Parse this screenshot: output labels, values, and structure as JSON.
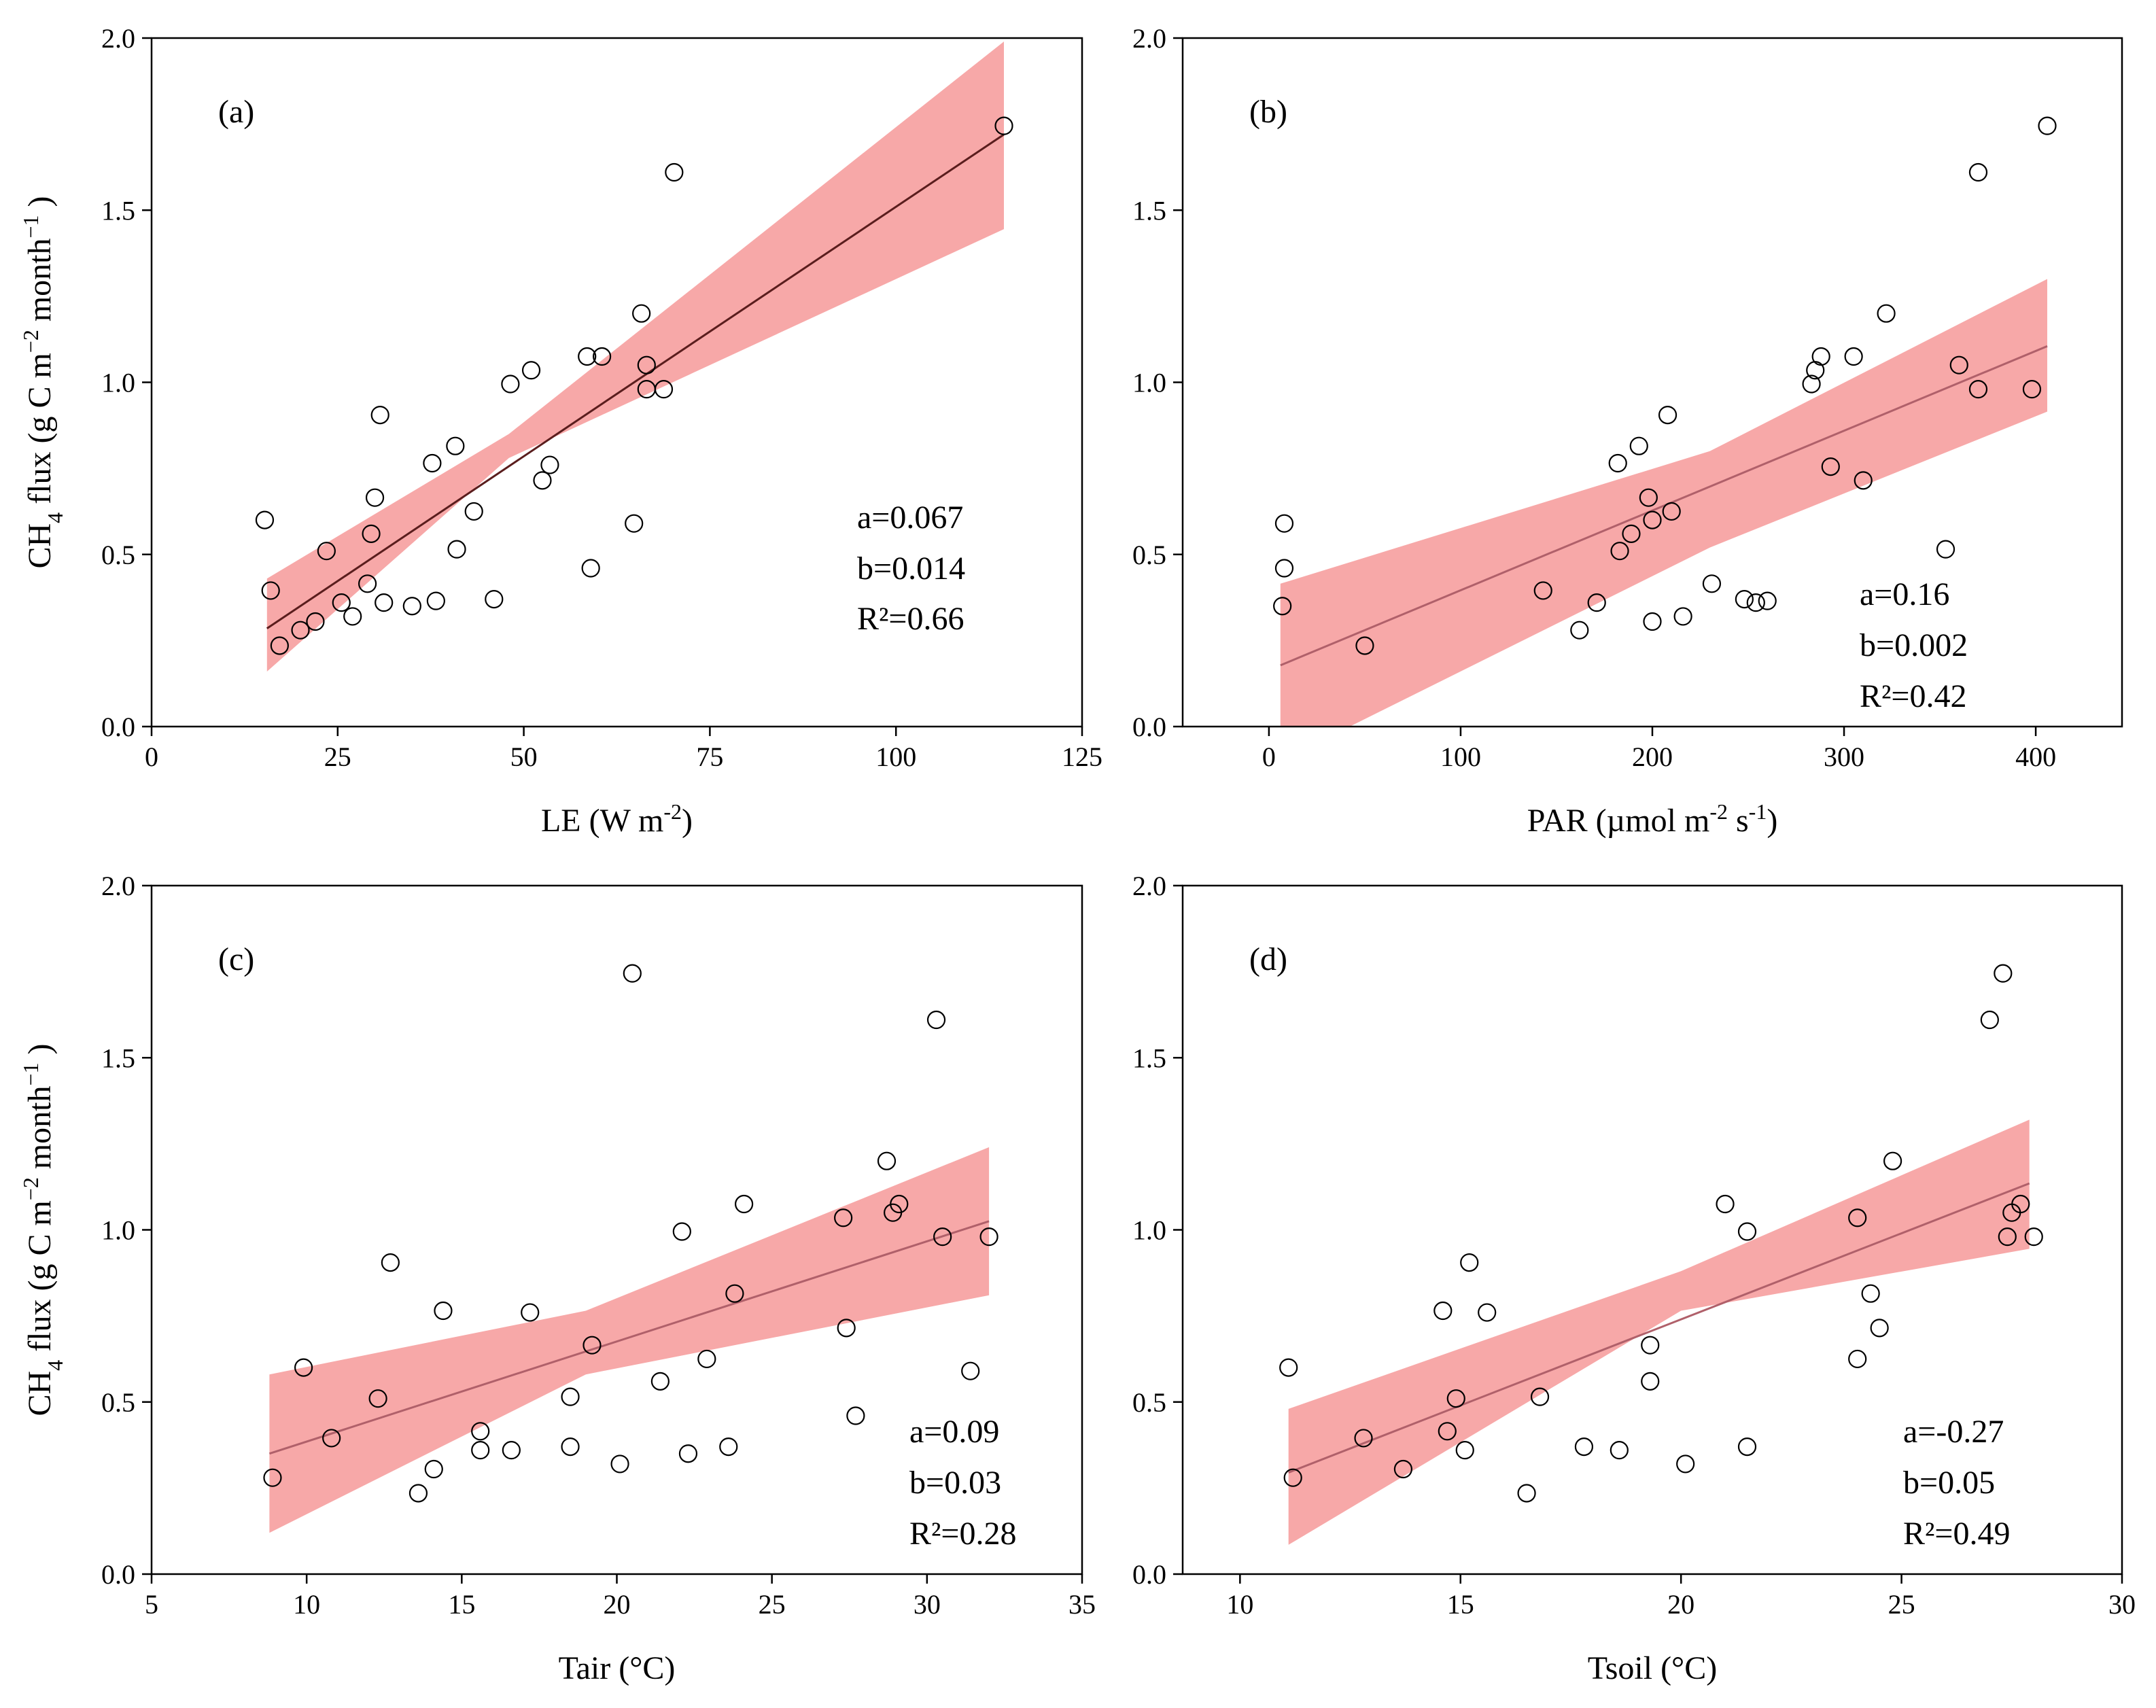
{
  "figure": {
    "ylabel_main": "CH",
    "ylabel_sub": "4",
    "ylabel_rest": " flux (g C m",
    "ylabel_sup1": "−2",
    "ylabel_rest2": " month",
    "ylabel_sup2": "−1",
    "ylabel_close": " )"
  },
  "colors": {
    "band": "#f7a8a8",
    "line_a": "#5a1d1d",
    "line_other": "#b0606a",
    "marker_edge": "#000000",
    "marker_fill": "#ffffff"
  },
  "chart_data": [
    {
      "type": "scatter",
      "panel": "(a)",
      "xlabel": "LE (W m",
      "xlabel_sup": "-2",
      "xlabel_close": ")",
      "xlim": [
        0,
        125
      ],
      "ylim": [
        0,
        2.0
      ],
      "xticks": [
        "0",
        "25",
        "50",
        "75",
        "100",
        "125"
      ],
      "yticks": [
        "0.0",
        "0.5",
        "1.0",
        "1.5",
        "2.0"
      ],
      "stats": [
        "a=0.067",
        "b=0.014",
        "R²=0.66"
      ],
      "fit": {
        "x0": 15.5,
        "x1": 114.5,
        "y0": 0.285,
        "y1": 1.72
      },
      "band": {
        "x": [
          15.5,
          48,
          114.5
        ],
        "lower": [
          0.16,
          0.78,
          1.445
        ],
        "upper": [
          0.43,
          0.85,
          1.99
        ]
      },
      "points": [
        [
          15.2,
          0.6
        ],
        [
          16,
          0.395
        ],
        [
          17.2,
          0.235
        ],
        [
          20,
          0.28
        ],
        [
          22,
          0.305
        ],
        [
          23.5,
          0.51
        ],
        [
          25.5,
          0.36
        ],
        [
          27,
          0.32
        ],
        [
          29,
          0.415
        ],
        [
          29.5,
          0.56
        ],
        [
          30,
          0.665
        ],
        [
          30.7,
          0.905
        ],
        [
          31.2,
          0.36
        ],
        [
          35,
          0.35
        ],
        [
          37.7,
          0.765
        ],
        [
          38.2,
          0.365
        ],
        [
          40.8,
          0.815
        ],
        [
          41,
          0.515
        ],
        [
          43.3,
          0.625
        ],
        [
          46,
          0.37
        ],
        [
          48.2,
          0.995
        ],
        [
          51,
          1.035
        ],
        [
          52.5,
          0.715
        ],
        [
          53.5,
          0.76
        ],
        [
          58.5,
          1.075
        ],
        [
          59,
          0.46
        ],
        [
          60.5,
          1.075
        ],
        [
          64.8,
          0.59
        ],
        [
          65.8,
          1.2
        ],
        [
          66.5,
          1.05
        ],
        [
          66.5,
          0.98
        ],
        [
          68.8,
          0.98
        ],
        [
          70.2,
          1.61
        ],
        [
          114.5,
          1.745
        ]
      ]
    },
    {
      "type": "scatter",
      "panel": "(b)",
      "xlabel": "PAR (µmol m",
      "xlabel_sup": "-2",
      "xlabel_mid": " s",
      "xlabel_sup2": "-1",
      "xlabel_close": ")",
      "xlim": [
        -45,
        445
      ],
      "ylim": [
        0,
        2.0
      ],
      "xticks": [
        "0",
        "100",
        "200",
        "300",
        "400"
      ],
      "xtick_values": [
        0,
        100,
        200,
        300,
        400
      ],
      "yticks": [
        "0.0",
        "0.5",
        "1.0",
        "1.5",
        "2.0"
      ],
      "stats": [
        "a=0.16",
        "b=0.002",
        "R²=0.42"
      ],
      "fit": {
        "x0": 6,
        "x1": 406,
        "y0": 0.178,
        "y1": 1.105
      },
      "band": {
        "x": [
          6,
          230,
          406
        ],
        "lower": [
          -0.1,
          0.52,
          0.915
        ],
        "upper": [
          0.415,
          0.8,
          1.3
        ]
      },
      "points": [
        [
          7,
          0.35
        ],
        [
          8,
          0.46
        ],
        [
          8,
          0.59
        ],
        [
          50,
          0.235
        ],
        [
          143,
          0.395
        ],
        [
          162,
          0.28
        ],
        [
          171,
          0.36
        ],
        [
          182,
          0.765
        ],
        [
          183,
          0.51
        ],
        [
          189,
          0.56
        ],
        [
          193,
          0.815
        ],
        [
          198,
          0.665
        ],
        [
          200,
          0.305
        ],
        [
          200,
          0.6
        ],
        [
          208,
          0.905
        ],
        [
          210,
          0.625
        ],
        [
          216,
          0.32
        ],
        [
          231,
          0.415
        ],
        [
          248,
          0.37
        ],
        [
          254,
          0.36
        ],
        [
          260,
          0.365
        ],
        [
          283,
          0.995
        ],
        [
          285,
          1.035
        ],
        [
          288,
          1.075
        ],
        [
          293,
          0.755
        ],
        [
          305,
          1.075
        ],
        [
          310,
          0.715
        ],
        [
          322,
          1.2
        ],
        [
          353,
          0.515
        ],
        [
          360,
          1.05
        ],
        [
          370,
          0.98
        ],
        [
          370,
          1.61
        ],
        [
          398,
          0.98
        ],
        [
          406,
          1.745
        ]
      ]
    },
    {
      "type": "scatter",
      "panel": "(c)",
      "xlabel": "Tair (°C)",
      "xlim": [
        5,
        35
      ],
      "ylim": [
        0,
        2.0
      ],
      "xticks": [
        "5",
        "10",
        "15",
        "20",
        "25",
        "30",
        "35"
      ],
      "yticks": [
        "0.0",
        "0.5",
        "1.0",
        "1.5",
        "2.0"
      ],
      "stats": [
        "a=0.09",
        "b=0.03",
        "R²=0.28"
      ],
      "fit": {
        "x0": 8.8,
        "x1": 32,
        "y0": 0.35,
        "y1": 1.025
      },
      "band": {
        "x": [
          8.8,
          19,
          32
        ],
        "lower": [
          0.12,
          0.58,
          0.81
        ],
        "upper": [
          0.58,
          0.765,
          1.24
        ]
      },
      "points": [
        [
          8.9,
          0.28
        ],
        [
          9.9,
          0.6
        ],
        [
          10.8,
          0.395
        ],
        [
          12.3,
          0.51
        ],
        [
          12.7,
          0.905
        ],
        [
          13.6,
          0.235
        ],
        [
          14.1,
          0.305
        ],
        [
          14.4,
          0.765
        ],
        [
          15.6,
          0.415
        ],
        [
          15.6,
          0.36
        ],
        [
          16.6,
          0.36
        ],
        [
          17.2,
          0.76
        ],
        [
          18.5,
          0.515
        ],
        [
          18.5,
          0.37
        ],
        [
          19.2,
          0.665
        ],
        [
          20.1,
          0.32
        ],
        [
          20.5,
          1.745
        ],
        [
          21.4,
          0.56
        ],
        [
          22.1,
          0.995
        ],
        [
          22.3,
          0.35
        ],
        [
          22.9,
          0.625
        ],
        [
          23.6,
          0.37
        ],
        [
          23.8,
          0.815
        ],
        [
          24.1,
          1.075
        ],
        [
          27.3,
          1.035
        ],
        [
          27.4,
          0.715
        ],
        [
          27.7,
          0.46
        ],
        [
          28.7,
          1.2
        ],
        [
          28.9,
          1.05
        ],
        [
          29.1,
          1.075
        ],
        [
          30.3,
          1.61
        ],
        [
          30.5,
          0.98
        ],
        [
          31.4,
          0.59
        ],
        [
          32,
          0.98
        ]
      ]
    },
    {
      "type": "scatter",
      "panel": "(d)",
      "xlabel": "Tsoil (°C)",
      "xlim": [
        8.7,
        30
      ],
      "ylim": [
        0,
        2.0
      ],
      "xticks": [
        "10",
        "15",
        "20",
        "25",
        "30"
      ],
      "xtick_values": [
        10,
        15,
        20,
        25,
        30
      ],
      "yticks": [
        "0.0",
        "0.5",
        "1.0",
        "1.5",
        "2.0"
      ],
      "stats": [
        "a=-0.27",
        "b=0.05",
        "R²=0.49"
      ],
      "fit": {
        "x0": 11.1,
        "x1": 27.9,
        "y0": 0.295,
        "y1": 1.135
      },
      "band": {
        "x": [
          11.1,
          20,
          27.9
        ],
        "lower": [
          0.085,
          0.765,
          0.945
        ],
        "upper": [
          0.48,
          0.88,
          1.32
        ]
      },
      "points": [
        [
          11.1,
          0.6
        ],
        [
          11.2,
          0.28
        ],
        [
          12.8,
          0.395
        ],
        [
          13.7,
          0.305
        ],
        [
          14.6,
          0.765
        ],
        [
          14.7,
          0.415
        ],
        [
          14.9,
          0.51
        ],
        [
          15.1,
          0.36
        ],
        [
          15.2,
          0.905
        ],
        [
          15.6,
          0.76
        ],
        [
          16.5,
          0.235
        ],
        [
          16.8,
          0.515
        ],
        [
          17.8,
          0.37
        ],
        [
          18.6,
          0.36
        ],
        [
          19.3,
          0.665
        ],
        [
          19.3,
          0.56
        ],
        [
          20.1,
          0.32
        ],
        [
          21,
          1.075
        ],
        [
          21.5,
          0.995
        ],
        [
          21.5,
          0.37
        ],
        [
          24,
          1.035
        ],
        [
          24,
          0.625
        ],
        [
          24.3,
          0.815
        ],
        [
          24.5,
          0.715
        ],
        [
          24.8,
          1.2
        ],
        [
          27,
          1.61
        ],
        [
          27.3,
          1.745
        ],
        [
          27.4,
          0.98
        ],
        [
          27.5,
          1.05
        ],
        [
          27.7,
          1.075
        ],
        [
          28.0,
          0.98
        ]
      ]
    }
  ]
}
